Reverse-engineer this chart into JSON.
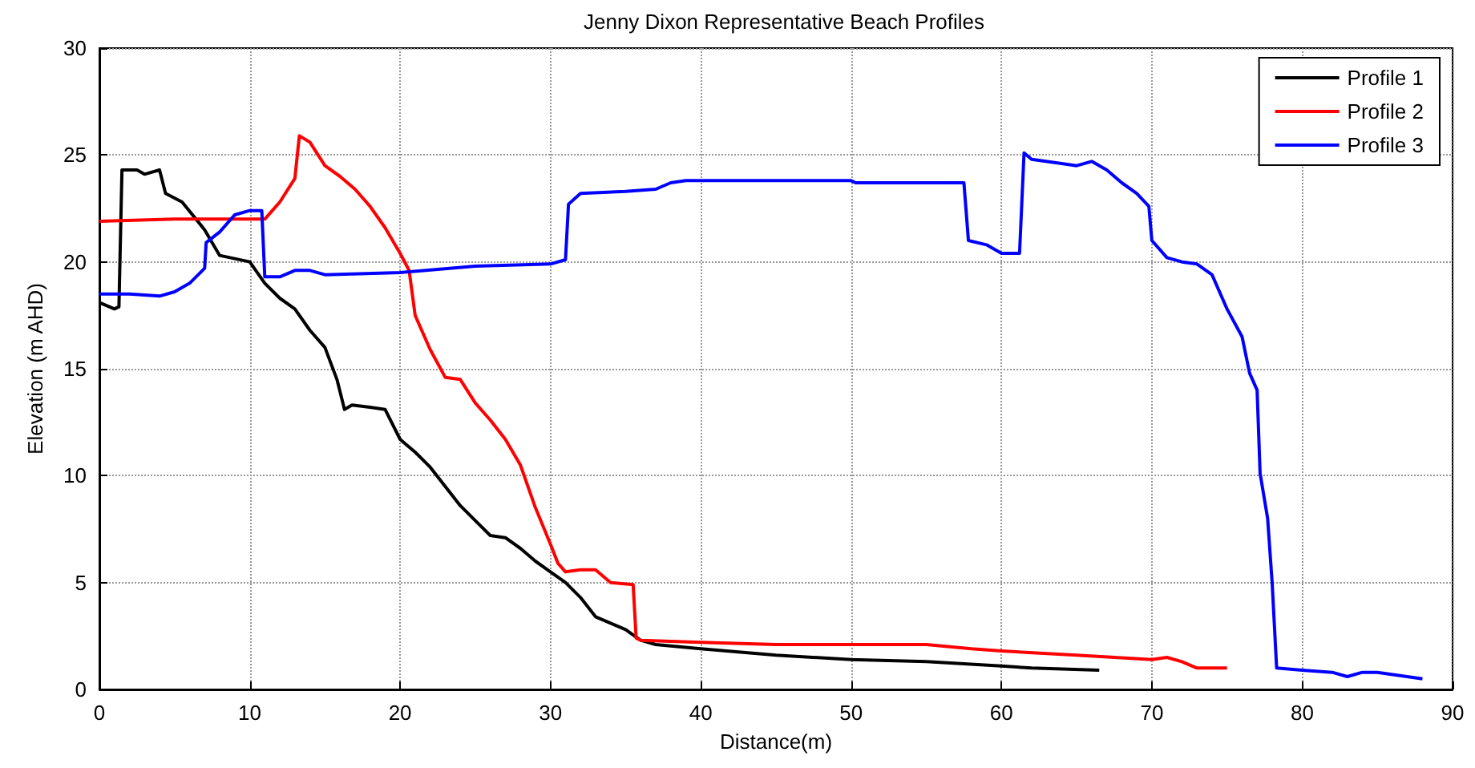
{
  "chart_data": {
    "type": "line",
    "title": "Jenny Dixon Representative Beach Profiles",
    "xlabel": "Distance(m)",
    "ylabel": "Elevation (m AHD)",
    "xlim": [
      0,
      90
    ],
    "xticks": [
      0,
      10,
      20,
      30,
      40,
      50,
      60,
      70,
      80,
      90
    ],
    "ylim": [
      0,
      30
    ],
    "yticks": [
      0,
      5,
      10,
      15,
      20,
      25,
      30
    ],
    "grid": true,
    "legend": "top right",
    "marker": "none",
    "line_style": "solid",
    "series": [
      {
        "name": "Profile 1",
        "color": "#000000",
        "x": [
          0,
          1,
          1.3,
          1.5,
          2.5,
          3,
          4,
          4.4,
          5.5,
          7,
          8,
          10,
          11,
          12,
          13,
          14,
          15,
          15.8,
          16.3,
          16.8,
          18,
          19,
          20,
          21,
          22,
          23,
          24,
          25,
          26,
          27,
          28,
          29,
          30,
          31,
          32,
          33,
          34,
          35,
          36,
          37,
          40,
          45,
          50,
          55,
          60,
          62,
          66.5
        ],
        "values": [
          18.1,
          17.8,
          17.9,
          24.3,
          24.3,
          24.1,
          24.3,
          23.2,
          22.8,
          21.5,
          20.3,
          20.0,
          19.0,
          18.3,
          17.8,
          16.8,
          16.0,
          14.5,
          13.1,
          13.3,
          13.2,
          13.1,
          11.7,
          11.1,
          10.4,
          9.5,
          8.6,
          7.9,
          7.2,
          7.1,
          6.6,
          6.0,
          5.5,
          5.0,
          4.3,
          3.4,
          3.1,
          2.8,
          2.3,
          2.1,
          1.9,
          1.6,
          1.4,
          1.3,
          1.1,
          1.0,
          0.9
        ]
      },
      {
        "name": "Profile 2",
        "color": "#ff0000",
        "x": [
          0,
          5,
          10,
          11,
          12,
          13,
          13.3,
          14,
          15,
          16,
          17,
          18,
          19,
          20,
          20.6,
          21,
          22,
          23,
          24,
          25,
          26,
          27,
          28,
          29,
          30,
          30.5,
          31,
          32,
          33,
          34,
          35.5,
          35.7,
          36,
          40,
          45,
          50,
          55,
          58,
          60,
          65,
          70,
          71,
          72,
          73,
          75
        ],
        "values": [
          21.9,
          22.0,
          22.0,
          22.0,
          22.8,
          23.9,
          25.9,
          25.6,
          24.5,
          24.0,
          23.4,
          22.6,
          21.6,
          20.4,
          19.6,
          17.5,
          15.9,
          14.6,
          14.5,
          13.4,
          12.6,
          11.7,
          10.5,
          8.5,
          6.8,
          5.9,
          5.5,
          5.6,
          5.6,
          5.0,
          4.9,
          2.4,
          2.3,
          2.2,
          2.1,
          2.1,
          2.1,
          1.9,
          1.8,
          1.6,
          1.4,
          1.5,
          1.3,
          1.0,
          1.0
        ]
      },
      {
        "name": "Profile 3",
        "color": "#0000ff",
        "x": [
          0,
          2,
          4,
          5,
          6,
          7,
          7.1,
          8,
          9,
          10,
          10.8,
          11,
          12,
          13,
          14,
          15,
          20,
          25,
          30,
          31,
          31.2,
          32,
          35,
          37,
          38,
          39,
          50,
          50.3,
          57.5,
          57.8,
          59,
          60,
          61.2,
          61.5,
          62,
          64,
          65,
          66,
          67,
          68,
          69,
          69.8,
          70,
          71,
          72,
          73,
          74,
          75,
          76,
          76.5,
          77,
          77.2,
          77.7,
          78,
          78.3,
          80,
          82,
          83,
          84,
          85,
          88
        ],
        "values": [
          18.5,
          18.5,
          18.4,
          18.6,
          19.0,
          19.7,
          20.9,
          21.4,
          22.2,
          22.4,
          22.4,
          19.3,
          19.3,
          19.6,
          19.6,
          19.4,
          19.5,
          19.8,
          19.9,
          20.1,
          22.7,
          23.2,
          23.3,
          23.4,
          23.7,
          23.8,
          23.8,
          23.7,
          23.7,
          21.0,
          20.8,
          20.4,
          20.4,
          25.1,
          24.8,
          24.6,
          24.5,
          24.7,
          24.3,
          23.7,
          23.2,
          22.6,
          21.0,
          20.2,
          20.0,
          19.9,
          19.4,
          17.8,
          16.5,
          14.8,
          14.0,
          10.1,
          8.0,
          5.0,
          1.0,
          0.9,
          0.8,
          0.6,
          0.8,
          0.8,
          0.5
        ]
      }
    ]
  }
}
